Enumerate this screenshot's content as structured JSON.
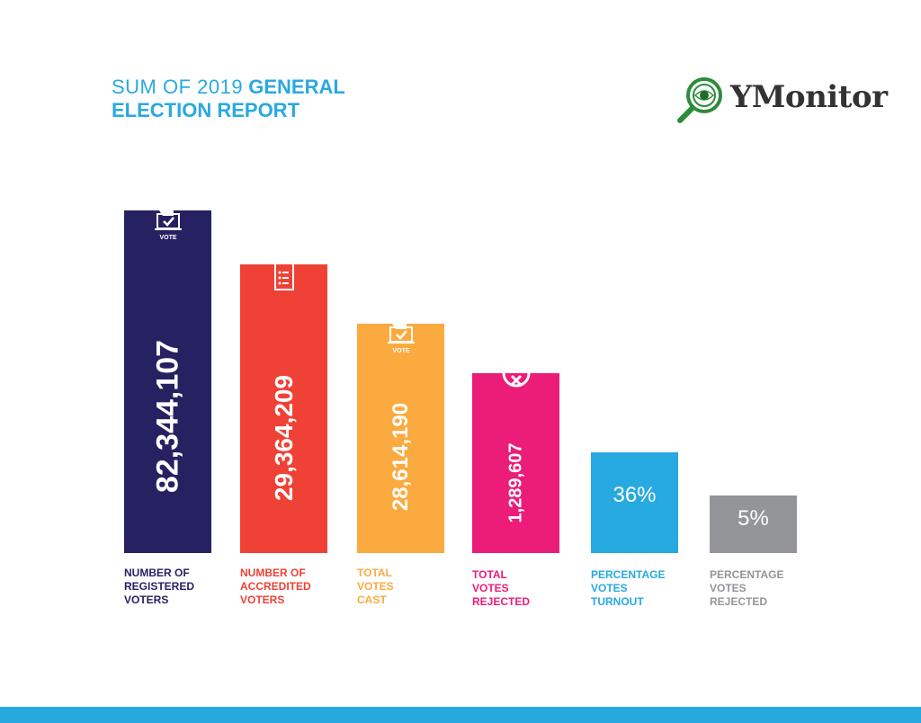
{
  "header": {
    "title_light": "SUM OF 2019",
    "title_bold_1": "GENERAL",
    "title_bold_2": "ELECTION REPORT"
  },
  "logo": {
    "text": "YMonitor",
    "icon": "magnifier-eye-icon",
    "color": "#2e8b3a"
  },
  "chart_data": {
    "type": "bar",
    "title": "SUM OF 2019 GENERAL ELECTION REPORT",
    "xlabel": "",
    "ylabel": "",
    "categories": [
      "NUMBER OF REGISTERED VOTERS",
      "NUMBER OF ACCREDITED VOTERS",
      "TOTAL VOTES CAST",
      "TOTAL VOTES REJECTED",
      "PERCENTAGE VOTES TURNOUT",
      "PERCENTAGE VOTES REJECTED"
    ],
    "values": [
      82344107,
      29364209,
      28614190,
      1289607,
      36,
      5
    ],
    "grid": false,
    "bars": [
      {
        "value_label": "82,344,107",
        "label_lines": [
          "NUMBER  OF",
          "REGISTERED",
          "VOTERS"
        ],
        "color": "#262262",
        "icon": "ballot-box-icon",
        "icon_text": "VOTE"
      },
      {
        "value_label": "29,364,209",
        "label_lines": [
          "NUMBER OF",
          "ACCREDITED",
          "VOTERS"
        ],
        "color": "#ef4136",
        "icon": "clipboard-list-icon",
        "icon_text": ""
      },
      {
        "value_label": "28,614,190",
        "label_lines": [
          "TOTAL",
          "VOTES",
          "CAST"
        ],
        "color": "#fbaa3f",
        "icon": "ballot-box-icon",
        "icon_text": "VOTE"
      },
      {
        "value_label": "1,289,607",
        "label_lines": [
          "TOTAL",
          "VOTES",
          "REJECTED"
        ],
        "color": "#ec1c79",
        "icon": "reject-x-icon",
        "icon_text": ""
      },
      {
        "value_label": "36%",
        "label_lines": [
          "PERCENTAGE",
          "VOTES",
          "TURNOUT"
        ],
        "color": "#27a9e1",
        "icon": "",
        "icon_text": ""
      },
      {
        "value_label": "5%",
        "label_lines": [
          "PERCENTAGE",
          "VOTES",
          "REJECTED"
        ],
        "color": "#939598",
        "icon": "",
        "icon_text": ""
      }
    ]
  },
  "footer": {
    "stripe_color": "#27a9df"
  }
}
